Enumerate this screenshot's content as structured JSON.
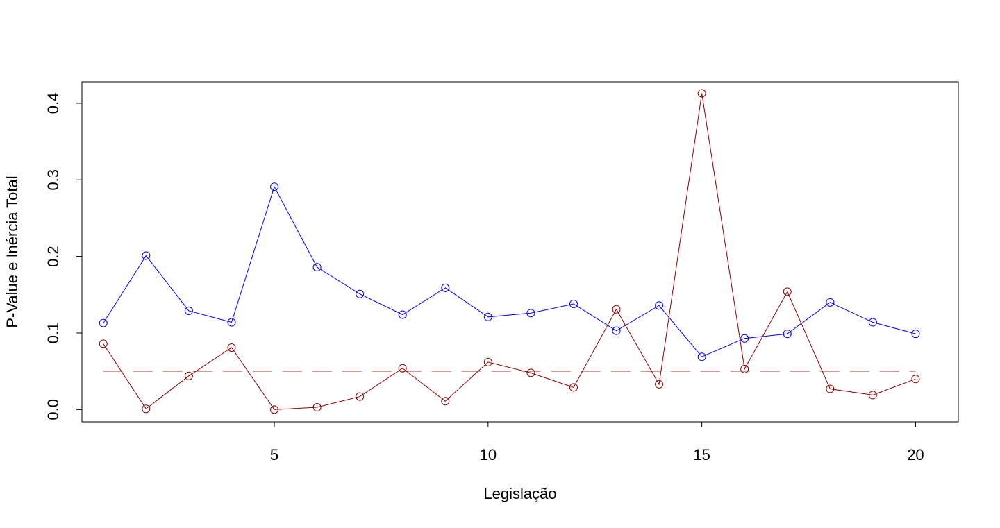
{
  "chart_data": {
    "type": "line",
    "title": "",
    "xlabel": "Legislação",
    "ylabel": "P-Value e Inércia Total",
    "xlim": [
      0.5,
      21
    ],
    "ylim": [
      -0.016,
      0.428
    ],
    "x_ticks": [
      5,
      10,
      15,
      20
    ],
    "y_ticks": [
      0.0,
      0.1,
      0.2,
      0.3,
      0.4
    ],
    "x_tick_labels": [
      "5",
      "10",
      "15",
      "20"
    ],
    "y_tick_labels": [
      "0.0",
      "0.1",
      "0.2",
      "0.3",
      "0.4"
    ],
    "grid": false,
    "legend": "none",
    "x": [
      1,
      2,
      3,
      4,
      5,
      6,
      7,
      8,
      9,
      10,
      11,
      12,
      13,
      14,
      15,
      16,
      17,
      18,
      19,
      20
    ],
    "series": [
      {
        "color": "#0000ff",
        "marker": "open-circle",
        "values": [
          0.113,
          0.201,
          0.129,
          0.114,
          0.291,
          0.186,
          0.151,
          0.124,
          0.159,
          0.121,
          0.126,
          0.138,
          0.103,
          0.136,
          0.069,
          0.093,
          0.099,
          0.14,
          0.114,
          0.099
        ]
      },
      {
        "color": "#8b0000",
        "marker": "open-circle",
        "values": [
          0.086,
          0.001,
          0.044,
          0.081,
          0.0,
          0.003,
          0.017,
          0.054,
          0.011,
          0.062,
          0.048,
          0.029,
          0.131,
          0.033,
          0.413,
          0.053,
          0.154,
          0.027,
          0.019,
          0.04
        ]
      }
    ],
    "reference_lines": [
      {
        "y": 0.05,
        "x_from": 1,
        "x_to": 20,
        "color": "#cd5555",
        "style": "dashed"
      }
    ]
  }
}
